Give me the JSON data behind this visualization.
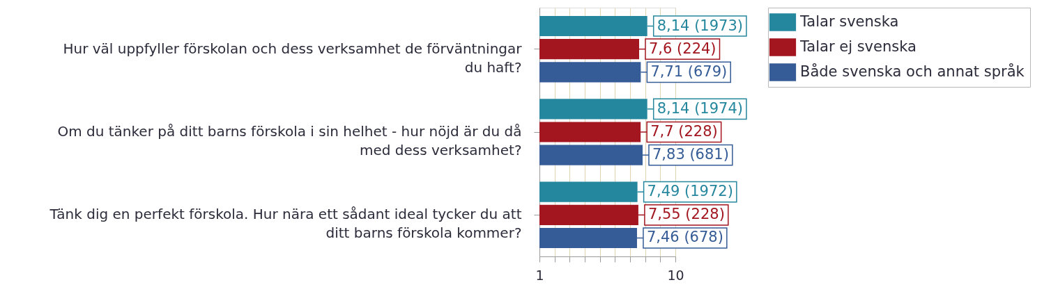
{
  "chart_data": {
    "type": "bar",
    "orientation": "horizontal",
    "categories": [
      "Hur väl uppfyller förskolan och dess verksamhet de förväntningar\ndu haft?",
      "Om du tänker på ditt barns förskola i sin helhet - hur nöjd är du då\nmed dess verksamhet?",
      "Tänk dig en perfekt förskola. Hur nära ett sådant ideal tycker du att\nditt barns förskola kommer?"
    ],
    "series": [
      {
        "name": "Talar svenska",
        "color": "#25879e",
        "values": [
          8.14,
          8.14,
          7.49
        ],
        "value_labels": [
          "8,14 (1973)",
          "8,14 (1974)",
          "7,49 (1972)"
        ]
      },
      {
        "name": "Talar ej svenska",
        "color": "#a3161f",
        "values": [
          7.6,
          7.7,
          7.55
        ],
        "value_labels": [
          "7,6 (224)",
          "7,7 (228)",
          "7,55 (228)"
        ]
      },
      {
        "name": "Både svenska och annat språk",
        "color": "#355c96",
        "values": [
          7.71,
          7.83,
          7.46
        ],
        "value_labels": [
          "7,71 (679)",
          "7,83 (681)",
          "7,46 (678)"
        ]
      }
    ],
    "xlim": [
      1,
      10
    ],
    "xticks": [
      1,
      {
        "value": 2,
        "label": null
      },
      {
        "value": 3,
        "label": null
      },
      {
        "value": 4,
        "label": null
      },
      {
        "value": 5,
        "label": null
      },
      {
        "value": 6,
        "label": null
      },
      {
        "value": 7,
        "label": null
      },
      {
        "value": 8,
        "label": null
      },
      {
        "value": 9,
        "label": null
      },
      10
    ],
    "grid": "x",
    "legend": "top right"
  }
}
